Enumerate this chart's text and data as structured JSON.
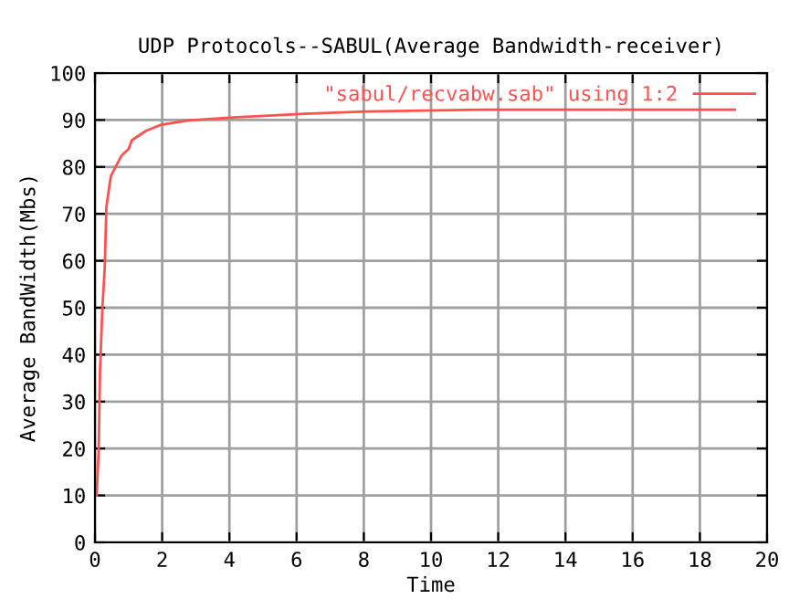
{
  "chart_data": {
    "type": "line",
    "title": "UDP Protocols--SABUL(Average Bandwidth-receiver)",
    "xlabel": "Time",
    "ylabel": "Average BandWidth(Mbs)",
    "series": [
      {
        "name": "\"sabul/recvabw.sab\" using 1:2",
        "color": "#ff5050",
        "x": [
          0.05,
          0.11,
          0.15,
          0.22,
          0.29,
          0.34,
          0.47,
          0.65,
          0.8,
          1.0,
          1.1,
          1.52,
          1.97,
          2.79,
          4.0,
          5.05,
          6.23,
          8.04,
          11.58,
          19.04
        ],
        "values": [
          10,
          19.6,
          36.5,
          50,
          58.5,
          71.5,
          78,
          80.5,
          82.5,
          83.8,
          85.7,
          87.7,
          89,
          89.9,
          90.5,
          90.9,
          91.3,
          91.8,
          92.2,
          92.2
        ]
      }
    ],
    "xlim": [
      0,
      20
    ],
    "xticks": [
      0,
      2,
      4,
      6,
      8,
      10,
      12,
      14,
      16,
      18,
      20
    ],
    "ylim": [
      0,
      100
    ],
    "yticks": [
      0,
      10,
      20,
      30,
      40,
      50,
      60,
      70,
      80,
      90,
      100
    ],
    "grid": true,
    "legend": "top right",
    "marker": "none",
    "line_style": "solid"
  }
}
